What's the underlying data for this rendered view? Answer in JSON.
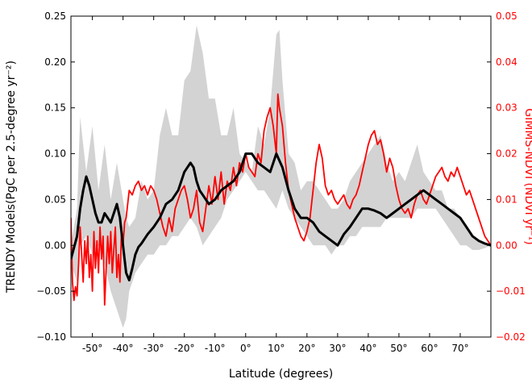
{
  "chart_data": {
    "type": "line",
    "title": "",
    "xlabel": "Latitude (degrees)",
    "ylabel_left": "TRENDY Models(PgC per 2.5-degree yr⁻²)",
    "ylabel_right": "GIMMS-NDVI (NDVI yr⁻¹)",
    "xlim": [
      -57,
      80
    ],
    "ylim_left": [
      -0.1,
      0.25
    ],
    "ylim_right": [
      -0.02,
      0.05
    ],
    "x_ticks": [
      -50,
      -40,
      -30,
      -20,
      -10,
      0,
      10,
      20,
      30,
      40,
      50,
      60,
      70
    ],
    "x_tick_labels": [
      "-50°",
      "-40°",
      "-30°",
      "-20°",
      "-10°",
      "0°",
      "10°",
      "20°",
      "30°",
      "40°",
      "50°",
      "60°",
      "70°"
    ],
    "y_left_ticks": [
      -0.1,
      -0.05,
      0.0,
      0.05,
      0.1,
      0.15,
      0.2,
      0.25
    ],
    "y_left_tick_labels": [
      "−0.10",
      "−0.05",
      "0.00",
      "0.05",
      "0.10",
      "0.15",
      "0.20",
      "0.25"
    ],
    "y_right_ticks": [
      -0.02,
      -0.01,
      0.0,
      0.01,
      0.02,
      0.03,
      0.04,
      0.05
    ],
    "y_right_tick_labels": [
      "−0.02",
      "−0.01",
      "0.00",
      "0.01",
      "0.02",
      "0.03",
      "0.04",
      "0.05"
    ],
    "grid": false,
    "colors": {
      "band": "#d3d3d3",
      "mean": "#000000",
      "ndvi": "#ff0000",
      "right_axis": "#ff0000"
    },
    "series": [
      {
        "axis": "left",
        "style": "shaded-range",
        "x": [
          -57,
          -55,
          -54,
          -52,
          -50,
          -48,
          -46,
          -44,
          -42,
          -40,
          -39,
          -38,
          -36,
          -34,
          -32,
          -30,
          -28,
          -26,
          -24,
          -22,
          -20,
          -18,
          -16,
          -14,
          -12,
          -10,
          -8,
          -6,
          -4,
          -2,
          0,
          2,
          4,
          6,
          8,
          10,
          11,
          12,
          14,
          16,
          18,
          20,
          22,
          24,
          26,
          28,
          30,
          32,
          34,
          36,
          38,
          40,
          42,
          44,
          46,
          48,
          50,
          52,
          54,
          56,
          58,
          60,
          62,
          64,
          66,
          68,
          70,
          72,
          74,
          76,
          78,
          80
        ],
        "upper": [
          0.0,
          0.04,
          0.14,
          0.08,
          0.13,
          0.06,
          0.11,
          0.05,
          0.09,
          0.05,
          0.03,
          0.02,
          0.03,
          0.07,
          0.05,
          0.06,
          0.12,
          0.15,
          0.12,
          0.12,
          0.18,
          0.19,
          0.24,
          0.21,
          0.16,
          0.16,
          0.12,
          0.12,
          0.15,
          0.1,
          0.09,
          0.08,
          0.13,
          0.11,
          0.15,
          0.23,
          0.235,
          0.18,
          0.1,
          0.09,
          0.06,
          0.07,
          0.07,
          0.06,
          0.05,
          0.04,
          0.04,
          0.05,
          0.07,
          0.08,
          0.09,
          0.1,
          0.11,
          0.12,
          0.09,
          0.07,
          0.08,
          0.07,
          0.09,
          0.11,
          0.08,
          0.07,
          0.06,
          0.06,
          0.04,
          0.04,
          0.03,
          0.02,
          0.01,
          0.005,
          0.003,
          0.0
        ],
        "lower": [
          -0.02,
          -0.04,
          0.0,
          0.01,
          -0.01,
          0.0,
          -0.02,
          -0.05,
          -0.07,
          -0.09,
          -0.08,
          -0.05,
          -0.03,
          -0.02,
          -0.01,
          -0.01,
          0.0,
          0.0,
          0.01,
          0.01,
          0.02,
          0.03,
          0.02,
          0.0,
          0.01,
          0.02,
          0.03,
          0.05,
          0.06,
          0.07,
          0.08,
          0.07,
          0.06,
          0.06,
          0.05,
          0.04,
          0.05,
          0.06,
          0.04,
          0.03,
          0.02,
          0.01,
          0.0,
          0.0,
          0.0,
          -0.01,
          0.0,
          0.0,
          0.01,
          0.01,
          0.02,
          0.02,
          0.02,
          0.02,
          0.03,
          0.03,
          0.03,
          0.03,
          0.03,
          0.04,
          0.04,
          0.04,
          0.04,
          0.03,
          0.02,
          0.01,
          0.0,
          0.0,
          -0.005,
          -0.005,
          -0.003,
          0.0
        ]
      },
      {
        "axis": "left",
        "style": "line",
        "x": [
          -57,
          -55,
          -54,
          -53,
          -52,
          -51,
          -50,
          -49,
          -48,
          -47,
          -46,
          -45,
          -44,
          -43,
          -42,
          -41,
          -40,
          -39,
          -38,
          -37,
          -36,
          -35,
          -34,
          -32,
          -30,
          -28,
          -26,
          -24,
          -22,
          -20,
          -18,
          -17,
          -16,
          -15,
          -14,
          -12,
          -10,
          -8,
          -6,
          -4,
          -2,
          0,
          2,
          4,
          6,
          8,
          10,
          12,
          14,
          16,
          18,
          20,
          22,
          24,
          26,
          28,
          30,
          32,
          34,
          36,
          38,
          40,
          42,
          44,
          46,
          48,
          50,
          52,
          54,
          56,
          58,
          60,
          62,
          64,
          66,
          68,
          70,
          72,
          74,
          76,
          78,
          80
        ],
        "y": [
          -0.015,
          0.01,
          0.04,
          0.06,
          0.075,
          0.065,
          0.05,
          0.035,
          0.025,
          0.025,
          0.035,
          0.03,
          0.025,
          0.035,
          0.045,
          0.03,
          0.0,
          -0.03,
          -0.038,
          -0.025,
          -0.01,
          -0.002,
          0.002,
          0.012,
          0.02,
          0.03,
          0.045,
          0.05,
          0.06,
          0.08,
          0.09,
          0.085,
          0.07,
          0.06,
          0.055,
          0.045,
          0.05,
          0.06,
          0.065,
          0.07,
          0.08,
          0.1,
          0.1,
          0.09,
          0.085,
          0.08,
          0.1,
          0.085,
          0.06,
          0.04,
          0.03,
          0.03,
          0.025,
          0.015,
          0.01,
          0.005,
          0.0,
          0.012,
          0.02,
          0.03,
          0.04,
          0.04,
          0.038,
          0.035,
          0.03,
          0.035,
          0.04,
          0.045,
          0.05,
          0.055,
          0.06,
          0.055,
          0.05,
          0.045,
          0.04,
          0.035,
          0.03,
          0.02,
          0.01,
          0.005,
          0.002,
          0.0
        ]
      },
      {
        "axis": "right",
        "style": "line",
        "x": [
          -57,
          -56.5,
          -56,
          -55.5,
          -55,
          -54.5,
          -54,
          -53.5,
          -53,
          -52.5,
          -52,
          -51.5,
          -51,
          -50.5,
          -50,
          -49.5,
          -49,
          -48.5,
          -48,
          -47.5,
          -47,
          -46.5,
          -46,
          -45.5,
          -45,
          -44.5,
          -44,
          -43.5,
          -43,
          -42.5,
          -42,
          -41.5,
          -41,
          -40.5,
          -40,
          -39.5,
          -39,
          -38.5,
          -38,
          -37,
          -36,
          -35,
          -34,
          -33,
          -32,
          -31,
          -30,
          -29,
          -28,
          -27,
          -26,
          -25,
          -24,
          -23,
          -22,
          -21,
          -20,
          -19,
          -18,
          -17,
          -16,
          -15,
          -14,
          -13,
          -12,
          -11,
          -10,
          -9,
          -8,
          -7,
          -6,
          -5,
          -4,
          -3,
          -2,
          -1,
          0,
          1,
          2,
          3,
          4,
          5,
          6,
          7,
          8,
          9,
          10,
          10.5,
          11,
          12,
          13,
          14,
          15,
          16,
          17,
          18,
          19,
          20,
          21,
          22,
          23,
          24,
          25,
          26,
          27,
          28,
          29,
          30,
          31,
          32,
          33,
          34,
          35,
          36,
          37,
          38,
          39,
          40,
          41,
          42,
          43,
          44,
          45,
          46,
          47,
          48,
          49,
          50,
          51,
          52,
          53,
          54,
          55,
          56,
          57,
          58,
          59,
          60,
          61,
          62,
          63,
          64,
          65,
          66,
          67,
          68,
          69,
          70,
          71,
          72,
          73,
          74,
          75,
          76,
          77,
          78,
          79,
          80
        ],
        "y": [
          0.006,
          -0.008,
          -0.012,
          -0.009,
          -0.011,
          -0.004,
          0.004,
          -0.002,
          -0.008,
          0.001,
          -0.004,
          0.002,
          -0.007,
          -0.002,
          -0.01,
          0.003,
          -0.005,
          0.001,
          -0.006,
          0.004,
          -0.003,
          0.002,
          -0.013,
          -0.005,
          0.002,
          -0.004,
          0.003,
          -0.006,
          -0.001,
          0.004,
          -0.007,
          -0.002,
          -0.008,
          0.003,
          0.0,
          0.005,
          0.006,
          0.009,
          0.012,
          0.011,
          0.013,
          0.014,
          0.012,
          0.013,
          0.011,
          0.013,
          0.012,
          0.01,
          0.007,
          0.004,
          0.002,
          0.006,
          0.003,
          0.008,
          0.01,
          0.012,
          0.013,
          0.01,
          0.006,
          0.008,
          0.012,
          0.005,
          0.003,
          0.008,
          0.013,
          0.009,
          0.015,
          0.01,
          0.016,
          0.009,
          0.014,
          0.012,
          0.017,
          0.013,
          0.018,
          0.016,
          0.02,
          0.017,
          0.016,
          0.015,
          0.02,
          0.018,
          0.025,
          0.028,
          0.03,
          0.026,
          0.02,
          0.033,
          0.03,
          0.026,
          0.018,
          0.012,
          0.009,
          0.006,
          0.004,
          0.002,
          0.001,
          0.003,
          0.006,
          0.012,
          0.018,
          0.022,
          0.019,
          0.013,
          0.011,
          0.012,
          0.01,
          0.009,
          0.01,
          0.011,
          0.009,
          0.008,
          0.01,
          0.011,
          0.013,
          0.016,
          0.019,
          0.022,
          0.024,
          0.025,
          0.022,
          0.023,
          0.02,
          0.016,
          0.019,
          0.017,
          0.013,
          0.01,
          0.008,
          0.007,
          0.008,
          0.006,
          0.009,
          0.011,
          0.012,
          0.01,
          0.009,
          0.011,
          0.013,
          0.015,
          0.016,
          0.017,
          0.015,
          0.014,
          0.016,
          0.015,
          0.017,
          0.015,
          0.013,
          0.011,
          0.012,
          0.01,
          0.008,
          0.006,
          0.004,
          0.002,
          0.001,
          0.0
        ]
      }
    ]
  }
}
